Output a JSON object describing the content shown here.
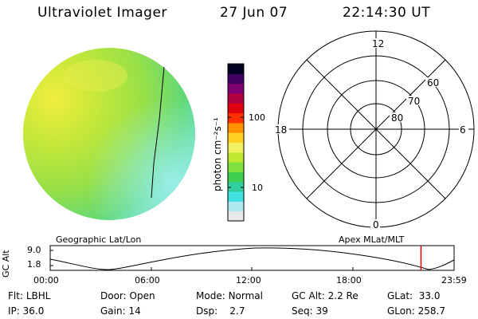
{
  "header": {
    "instrument": "Ultraviolet Imager",
    "date": "27 Jun 07",
    "time": "22:14:30 UT"
  },
  "colorbar": {
    "unit_label": "photon cm⁻²s⁻¹",
    "ticks": [
      {
        "label": "100",
        "value": 100
      },
      {
        "label": "10",
        "value": 10
      }
    ],
    "colors": [
      "#e8e8e8",
      "#b0e8f0",
      "#40e0e0",
      "#30d0a0",
      "#40d050",
      "#80e040",
      "#c0e830",
      "#f0f060",
      "#ffd020",
      "#ff9000",
      "#ff3000",
      "#e00010",
      "#b00040",
      "#800070",
      "#400060",
      "#000020"
    ]
  },
  "polar_grid": {
    "mlt_labels": {
      "top": "12",
      "right": "6",
      "bottom": "0",
      "left": "18"
    },
    "lat_labels": [
      "60",
      "70",
      "80"
    ]
  },
  "timeline": {
    "left_title": "Geographic Lat/Lon",
    "right_title": "Apex MLat/MLT",
    "axis_label": "GC Alt",
    "y_ticks": [
      "9.0",
      "1.8"
    ],
    "x_ticks": [
      "00:00",
      "06:00",
      "12:00",
      "18:00",
      "23:59"
    ],
    "current_fraction": 0.918
  },
  "status": [
    [
      {
        "k": "Flt:",
        "v": "LBHL"
      },
      {
        "k": "Door:",
        "v": "Open"
      },
      {
        "k": "Mode:",
        "v": "Normal"
      },
      {
        "k": "GC Alt:",
        "v": "2.2 Re"
      },
      {
        "k": "GLat:",
        "v": "33.0"
      }
    ],
    [
      {
        "k": "IP:",
        "v": "36.0"
      },
      {
        "k": "Gain:",
        "v": "14"
      },
      {
        "k": "Dsp:",
        "v": "2.7"
      },
      {
        "k": "Seq:",
        "v": "39"
      },
      {
        "k": "GLon:",
        "v": "258.7"
      }
    ]
  ]
}
